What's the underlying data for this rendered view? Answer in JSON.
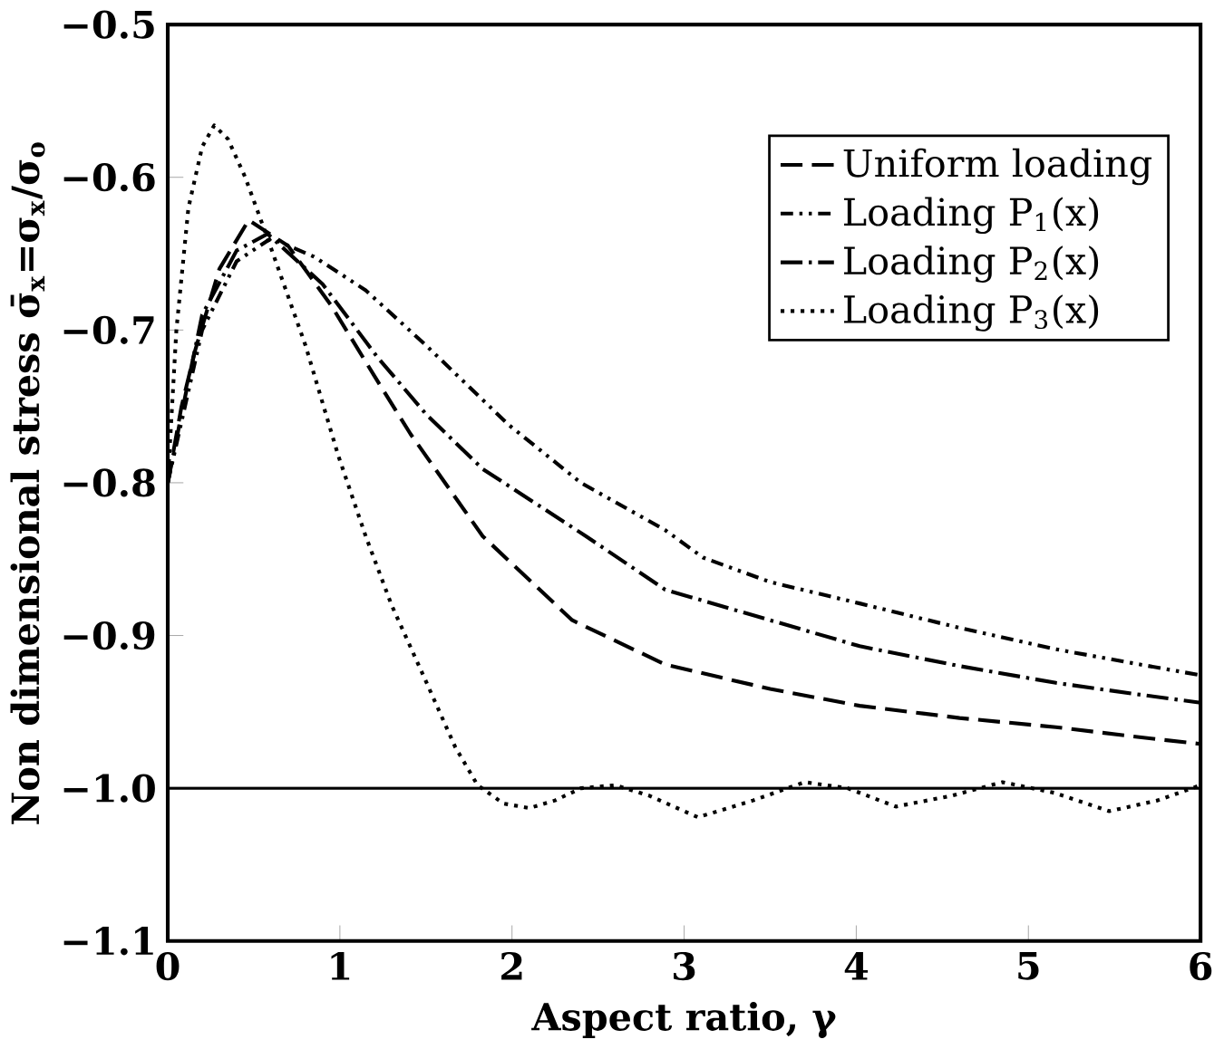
{
  "chart_data": {
    "type": "line",
    "xlabel": "Aspect ratio, γ",
    "ylabel": "Non dimensional stress σ̄$_{x}$=σ$_{x}$/σ$_{o}$",
    "xlim": [
      0,
      6
    ],
    "ylim": [
      -1.1,
      -0.5
    ],
    "xticks": [
      0,
      1,
      2,
      3,
      4,
      5,
      6
    ],
    "yticks": [
      {
        "value": -1.1,
        "label": "−1.1"
      },
      {
        "value": -1.0,
        "label": "−1.0"
      },
      {
        "value": -0.9,
        "label": "−0.9"
      },
      {
        "value": -0.8,
        "label": "−0.8"
      },
      {
        "value": -0.7,
        "label": "−0.7"
      },
      {
        "value": -0.6,
        "label": "−0.6"
      },
      {
        "value": -0.5,
        "label": "−0.5"
      }
    ],
    "legend": "top right",
    "grid": false,
    "marker": "none",
    "ref_lines": [
      {
        "axis": "y",
        "value": -1.0,
        "color": "#000000",
        "line_style": "solid"
      }
    ],
    "series": [
      {
        "name": "Uniform loading",
        "color": "#000000",
        "line_style": "dashed",
        "x": [
          0,
          0.08,
          0.16,
          0.3,
          0.47,
          0.7,
          0.95,
          1.2,
          1.41,
          1.83,
          2.35,
          2.89,
          3.5,
          4.02,
          4.6,
          5.16,
          5.6,
          6
        ],
        "values": [
          -0.8,
          -0.75,
          -0.713,
          -0.66,
          -0.628,
          -0.645,
          -0.684,
          -0.73,
          -0.768,
          -0.835,
          -0.89,
          -0.919,
          -0.935,
          -0.946,
          -0.954,
          -0.96,
          -0.966,
          -0.971
        ]
      },
      {
        "name": "Loading P$_{1}$(x)",
        "color": "#000000",
        "line_style": "dashdotdot",
        "x": [
          0,
          0.08,
          0.2,
          0.4,
          0.6,
          0.85,
          1.15,
          1.5,
          1.98,
          2.4,
          2.89,
          3.11,
          3.5,
          4.02,
          4.6,
          5.16,
          5.6,
          6
        ],
        "values": [
          -0.8,
          -0.76,
          -0.7,
          -0.655,
          -0.64,
          -0.652,
          -0.674,
          -0.71,
          -0.762,
          -0.8,
          -0.831,
          -0.849,
          -0.865,
          -0.879,
          -0.895,
          -0.909,
          -0.918,
          -0.926
        ]
      },
      {
        "name": "Loading P$_{2}$(x)",
        "color": "#000000",
        "line_style": "dashdot",
        "x": [
          0,
          0.08,
          0.2,
          0.4,
          0.58,
          0.9,
          1.22,
          1.5,
          1.83,
          2.43,
          2.89,
          3.5,
          4.02,
          4.6,
          5.16,
          5.6,
          6
        ],
        "values": [
          -0.8,
          -0.755,
          -0.69,
          -0.648,
          -0.637,
          -0.67,
          -0.718,
          -0.755,
          -0.791,
          -0.835,
          -0.87,
          -0.89,
          -0.907,
          -0.92,
          -0.931,
          -0.938,
          -0.944
        ]
      },
      {
        "name": "Loading P$_{3}$(x)",
        "color": "#000000",
        "line_style": "dotted",
        "x": [
          0,
          0.05,
          0.12,
          0.2,
          0.27,
          0.35,
          0.45,
          0.58,
          0.8,
          0.99,
          1.15,
          1.3,
          1.5,
          1.67,
          1.8,
          1.95,
          2.1,
          2.25,
          2.4,
          2.6,
          2.8,
          3.08,
          3.4,
          3.7,
          3.95,
          4.23,
          4.55,
          4.85,
          5.15,
          5.47,
          5.75,
          6
        ],
        "values": [
          -0.8,
          -0.7,
          -0.62,
          -0.58,
          -0.566,
          -0.575,
          -0.6,
          -0.64,
          -0.71,
          -0.782,
          -0.835,
          -0.88,
          -0.93,
          -0.973,
          -0.998,
          -1.01,
          -1.013,
          -1.008,
          -1.0,
          -0.998,
          -1.005,
          -1.019,
          -1.008,
          -0.996,
          -1.0,
          -1.012,
          -1.005,
          -0.996,
          -1.003,
          -1.015,
          -1.008,
          -0.998
        ]
      }
    ]
  }
}
